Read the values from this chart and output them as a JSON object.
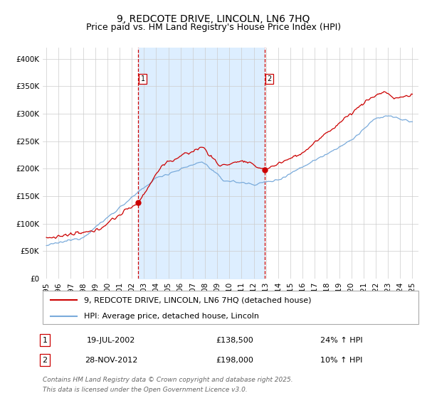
{
  "title": "9, REDCOTE DRIVE, LINCOLN, LN6 7HQ",
  "subtitle": "Price paid vs. HM Land Registry's House Price Index (HPI)",
  "ylim": [
    0,
    420000
  ],
  "xlim": [
    1994.7,
    2025.5
  ],
  "yticks": [
    0,
    50000,
    100000,
    150000,
    200000,
    250000,
    300000,
    350000,
    400000
  ],
  "ytick_labels": [
    "£0",
    "£50K",
    "£100K",
    "£150K",
    "£200K",
    "£250K",
    "£300K",
    "£350K",
    "£400K"
  ],
  "xticks": [
    1995,
    1996,
    1997,
    1998,
    1999,
    2000,
    2001,
    2002,
    2003,
    2004,
    2005,
    2006,
    2007,
    2008,
    2009,
    2010,
    2011,
    2012,
    2013,
    2014,
    2015,
    2016,
    2017,
    2018,
    2019,
    2020,
    2021,
    2022,
    2023,
    2024,
    2025
  ],
  "property_color": "#cc0000",
  "hpi_color": "#7aabdb",
  "shade_color": "#ddeeff",
  "vline_color": "#cc0000",
  "sale1_x": 2002.54,
  "sale1_y": 138500,
  "sale1_label": "1",
  "sale1_date": "19-JUL-2002",
  "sale1_price": "£138,500",
  "sale1_hpi": "24% ↑ HPI",
  "sale2_x": 2012.91,
  "sale2_y": 198000,
  "sale2_label": "2",
  "sale2_date": "28-NOV-2012",
  "sale2_price": "£198,000",
  "sale2_hpi": "10% ↑ HPI",
  "legend_property": "9, REDCOTE DRIVE, LINCOLN, LN6 7HQ (detached house)",
  "legend_hpi": "HPI: Average price, detached house, Lincoln",
  "footnote_line1": "Contains HM Land Registry data © Crown copyright and database right 2025.",
  "footnote_line2": "This data is licensed under the Open Government Licence v3.0.",
  "title_fontsize": 10,
  "subtitle_fontsize": 9,
  "tick_fontsize": 7.5,
  "legend_fontsize": 8,
  "table_fontsize": 8,
  "footnote_fontsize": 6.5
}
